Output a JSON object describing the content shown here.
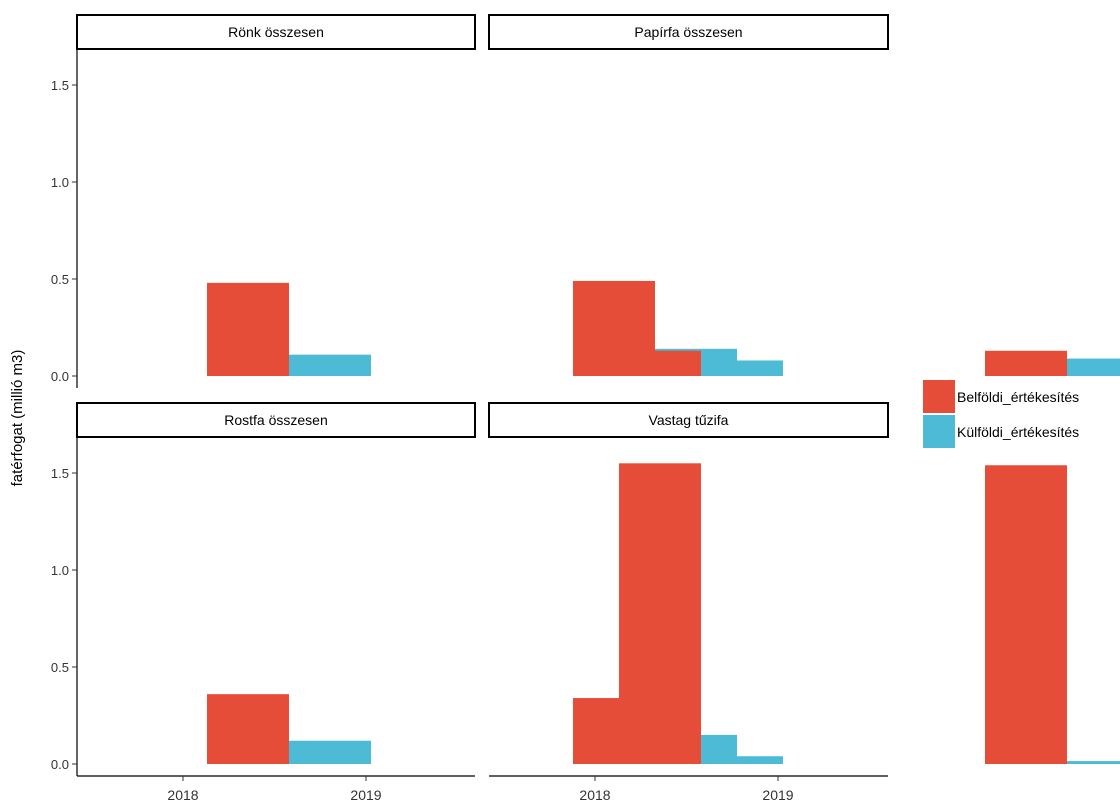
{
  "chart_data": {
    "type": "bar",
    "layout": "facet-grid 2x2",
    "ylabel": "fatérfogat (millió m3)",
    "xlabel": "",
    "categories": [
      "2018",
      "2019"
    ],
    "ylim": [
      0,
      1.6
    ],
    "yticks": [
      "0.0",
      "0.5",
      "1.0",
      "1.5"
    ],
    "grid": false,
    "legend_position": "right",
    "series_meta": [
      {
        "name": "Belföldi_értékesítés",
        "color": "#e64d38"
      },
      {
        "name": "Külföldi_értékesítés",
        "color": "#4dbbd5"
      }
    ],
    "facets": [
      {
        "title": "Rönk összesen",
        "series": [
          {
            "name": "Belföldi_értékesítés",
            "values": [
              0.48,
              0.49
            ]
          },
          {
            "name": "Külföldi_értékesítés",
            "values": [
              0.11,
              0.14
            ]
          }
        ]
      },
      {
        "title": "Papírfa összesen",
        "series": [
          {
            "name": "Belföldi_értékesítés",
            "values": [
              0.13,
              0.13
            ]
          },
          {
            "name": "Külföldi_értékesítés",
            "values": [
              0.08,
              0.09
            ]
          }
        ]
      },
      {
        "title": "Rostfa összesen",
        "series": [
          {
            "name": "Belföldi_értékesítés",
            "values": [
              0.36,
              0.34
            ]
          },
          {
            "name": "Külföldi_értékesítés",
            "values": [
              0.12,
              0.15
            ]
          }
        ]
      },
      {
        "title": "Vastag tűzifa",
        "series": [
          {
            "name": "Belföldi_értékesítés",
            "values": [
              1.55,
              1.54
            ]
          },
          {
            "name": "Külföldi_értékesítés",
            "values": [
              0.04,
              0.015
            ]
          }
        ]
      }
    ]
  }
}
